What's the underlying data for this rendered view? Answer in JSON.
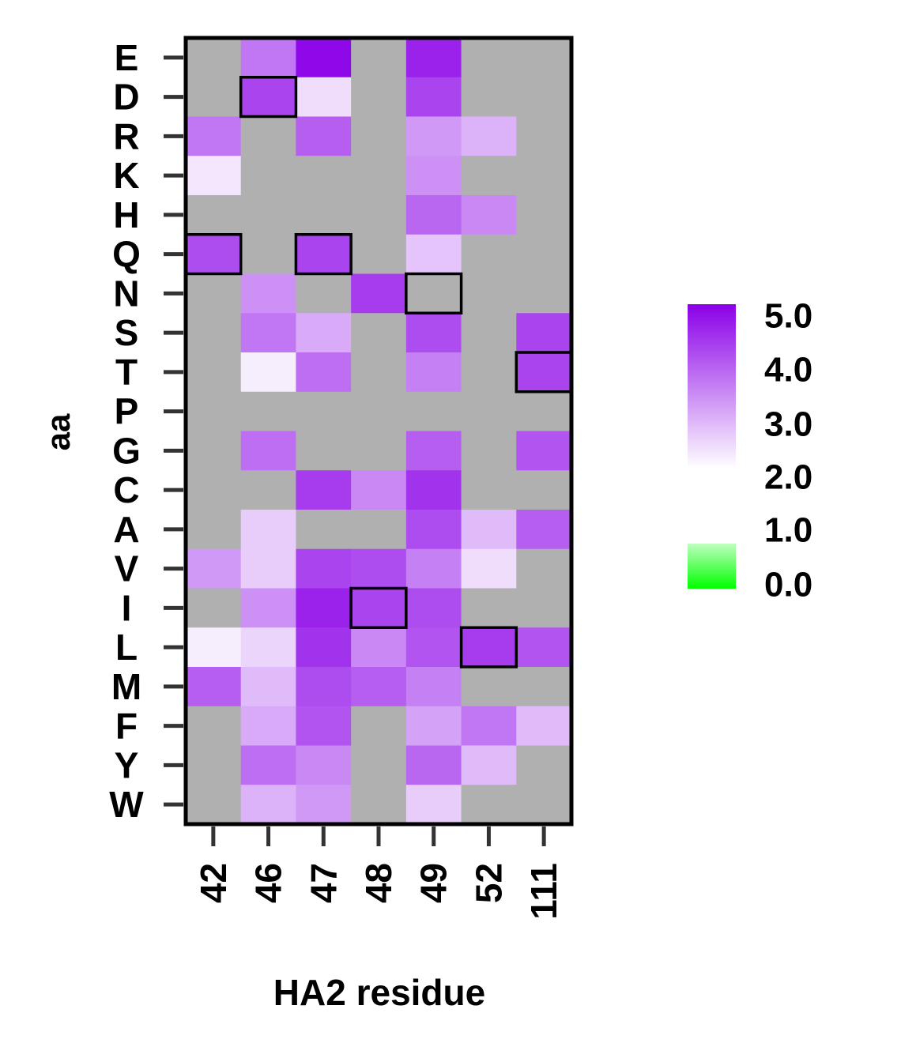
{
  "chart_data": {
    "type": "heatmap",
    "xlabel": "HA2 residue",
    "ylabel": "aa",
    "x_categories": [
      "42",
      "46",
      "47",
      "48",
      "49",
      "52",
      "111"
    ],
    "y_categories": [
      "E",
      "D",
      "R",
      "K",
      "H",
      "Q",
      "N",
      "S",
      "T",
      "P",
      "G",
      "C",
      "A",
      "V",
      "I",
      "L",
      "M",
      "F",
      "Y",
      "W"
    ],
    "values": [
      [
        null,
        3.6,
        4.9,
        null,
        4.6,
        null,
        null
      ],
      [
        null,
        4.2,
        2.4,
        null,
        4.2,
        null,
        null
      ],
      [
        3.6,
        null,
        3.9,
        null,
        3.2,
        2.9,
        null
      ],
      [
        2.3,
        null,
        null,
        null,
        3.3,
        null,
        null
      ],
      [
        null,
        null,
        null,
        null,
        3.8,
        3.4,
        null
      ],
      [
        4.1,
        null,
        4.2,
        null,
        2.7,
        null,
        null
      ],
      [
        null,
        3.3,
        null,
        4.3,
        null,
        null,
        null
      ],
      [
        null,
        3.6,
        3.0,
        null,
        4.1,
        null,
        4.2
      ],
      [
        null,
        2.2,
        3.7,
        null,
        3.5,
        null,
        4.2
      ],
      [
        null,
        null,
        null,
        null,
        null,
        null,
        null
      ],
      [
        null,
        3.7,
        null,
        null,
        3.9,
        null,
        4.0
      ],
      [
        null,
        null,
        4.3,
        3.4,
        4.4,
        null,
        null
      ],
      [
        null,
        2.6,
        null,
        null,
        4.1,
        2.8,
        3.9
      ],
      [
        3.2,
        2.6,
        4.2,
        4.1,
        3.5,
        2.4,
        null
      ],
      [
        null,
        3.3,
        4.6,
        4.2,
        4.1,
        null,
        null
      ],
      [
        2.2,
        2.5,
        4.4,
        3.4,
        4.0,
        4.3,
        4.0
      ],
      [
        3.9,
        2.8,
        4.1,
        3.9,
        3.5,
        null,
        null
      ],
      [
        null,
        3.0,
        4.0,
        null,
        3.1,
        3.6,
        2.8
      ],
      [
        null,
        3.7,
        3.4,
        null,
        3.8,
        2.8,
        null
      ],
      [
        null,
        2.9,
        3.2,
        null,
        2.6,
        null,
        null
      ]
    ],
    "missing_color": "#B0B0B0",
    "highlighted_cells": [
      {
        "aa": "D",
        "residue": "46"
      },
      {
        "aa": "Q",
        "residue": "42"
      },
      {
        "aa": "Q",
        "residue": "47"
      },
      {
        "aa": "N",
        "residue": "49"
      },
      {
        "aa": "T",
        "residue": "111"
      },
      {
        "aa": "I",
        "residue": "48"
      },
      {
        "aa": "L",
        "residue": "52"
      }
    ],
    "colorbar": {
      "tick_labels": [
        "5.0",
        "4.0",
        "3.0",
        "2.0",
        "1.0",
        "0.0"
      ],
      "range": [
        0,
        5
      ],
      "low_color": "#00FF00",
      "mid_color": "#FFFFFF",
      "high_color": "#8B00E8"
    },
    "grid": false,
    "legend_position": "right"
  }
}
